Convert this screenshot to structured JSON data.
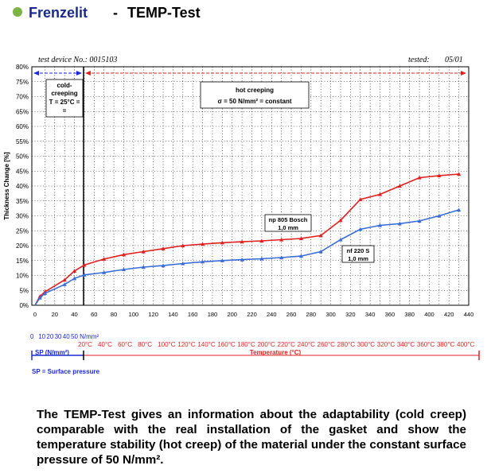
{
  "header": {
    "brand": "Frenzelit",
    "separator": "-",
    "title": "TEMP-Test",
    "bullet_color": "#7cb342",
    "brand_color": "#1a2a8c"
  },
  "meta": {
    "device": "test device No.: 0015103",
    "tested_label": "tested:",
    "tested_date": "05/01"
  },
  "chart_data": {
    "type": "line",
    "ylabel": "Thickness Change [%]",
    "xlim": [
      0,
      440
    ],
    "ylim": [
      0,
      80
    ],
    "x_ticks": [
      0,
      20,
      40,
      60,
      80,
      100,
      120,
      140,
      160,
      180,
      200,
      220,
      240,
      260,
      280,
      300,
      320,
      340,
      360,
      380,
      400,
      420,
      440
    ],
    "y_ticks": [
      0,
      5,
      10,
      15,
      20,
      25,
      30,
      35,
      40,
      45,
      50,
      55,
      60,
      65,
      70,
      75,
      80
    ],
    "y_tick_labels": [
      "0%",
      "5%",
      "10%",
      "15%",
      "20%",
      "25%",
      "30%",
      "35%",
      "40%",
      "45%",
      "50%",
      "55%",
      "60%",
      "65%",
      "70%",
      "75%",
      "80%"
    ],
    "grid": true,
    "series": [
      {
        "name": "np 805 Bosch 1,0 mm",
        "color": "#e02020",
        "x": [
          0,
          5,
          10,
          30,
          40,
          50,
          70,
          90,
          110,
          130,
          150,
          170,
          190,
          210,
          230,
          250,
          270,
          290,
          310,
          330,
          350,
          370,
          390,
          410,
          430
        ],
        "y": [
          0,
          3,
          4.5,
          8.5,
          11.5,
          13.5,
          15.5,
          17,
          18,
          19,
          20,
          20.5,
          21,
          21.3,
          21.6,
          22,
          22.4,
          23.4,
          28.5,
          35.5,
          37.2,
          40,
          42.8,
          43.5,
          44
        ]
      },
      {
        "name": "nf 220 S 1,0 mm",
        "color": "#3a6cd8",
        "x": [
          0,
          5,
          10,
          30,
          40,
          50,
          70,
          90,
          110,
          130,
          150,
          170,
          190,
          210,
          230,
          250,
          270,
          290,
          310,
          330,
          350,
          370,
          390,
          410,
          430
        ],
        "y": [
          0,
          2.5,
          4,
          7,
          9,
          10.2,
          11,
          12,
          12.8,
          13.3,
          14,
          14.6,
          15,
          15.3,
          15.6,
          16,
          16.5,
          18,
          22,
          25.5,
          26.8,
          27.4,
          28.3,
          30,
          32
        ]
      }
    ],
    "annotations": {
      "cold": {
        "lines": [
          "cold-",
          "creeping",
          "T = 25°C =",
          "="
        ]
      },
      "hot": {
        "lines": [
          "hot creeping",
          "σ = 50 N/mm² = constant"
        ]
      },
      "label_red": {
        "lines": [
          "np 805 Bosch",
          "1,0 mm"
        ]
      },
      "label_blue": {
        "lines": [
          "nf  220 S",
          "1,0 mm"
        ]
      }
    }
  },
  "axes_extra": {
    "pressure_ticks": [
      "0",
      "10",
      "20",
      "30",
      "40",
      "50 N/mm²"
    ],
    "temperature_ticks": [
      "20°C",
      "40°C",
      "60°C",
      "80°C",
      "100°C",
      "120°C",
      "140°C",
      "160°C",
      "180°C",
      "200°C",
      "220°C",
      "240°C",
      "260°C",
      "280°C",
      "300°C",
      "320°C",
      "340°C",
      "360°C",
      "380°C",
      "400°C"
    ],
    "sp_label": "SP (N/mm²)",
    "temp_label": "Temperature (°C)",
    "sp_note": "SP = Surface pressure"
  },
  "caption": "The TEMP-Test gives an information about the adaptability (cold creep) comparable with the real installation of the gasket and show the temperature stability (hot creep) of the material under the constant surface pressure of 50 N/mm²."
}
